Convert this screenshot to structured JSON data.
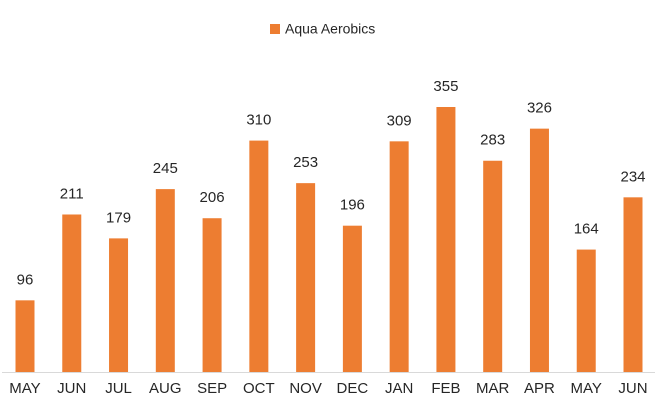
{
  "chart_data": {
    "type": "bar",
    "categories": [
      "MAY",
      "JUN",
      "JUL",
      "AUG",
      "SEP",
      "OCT",
      "NOV",
      "DEC",
      "JAN",
      "FEB",
      "MAR",
      "APR",
      "MAY",
      "JUN"
    ],
    "series": [
      {
        "name": "Aqua Aerobics",
        "color": "#ed7d31",
        "values": [
          96,
          211,
          179,
          245,
          206,
          310,
          253,
          196,
          309,
          355,
          283,
          326,
          164,
          234
        ]
      }
    ],
    "legend": "top"
  }
}
